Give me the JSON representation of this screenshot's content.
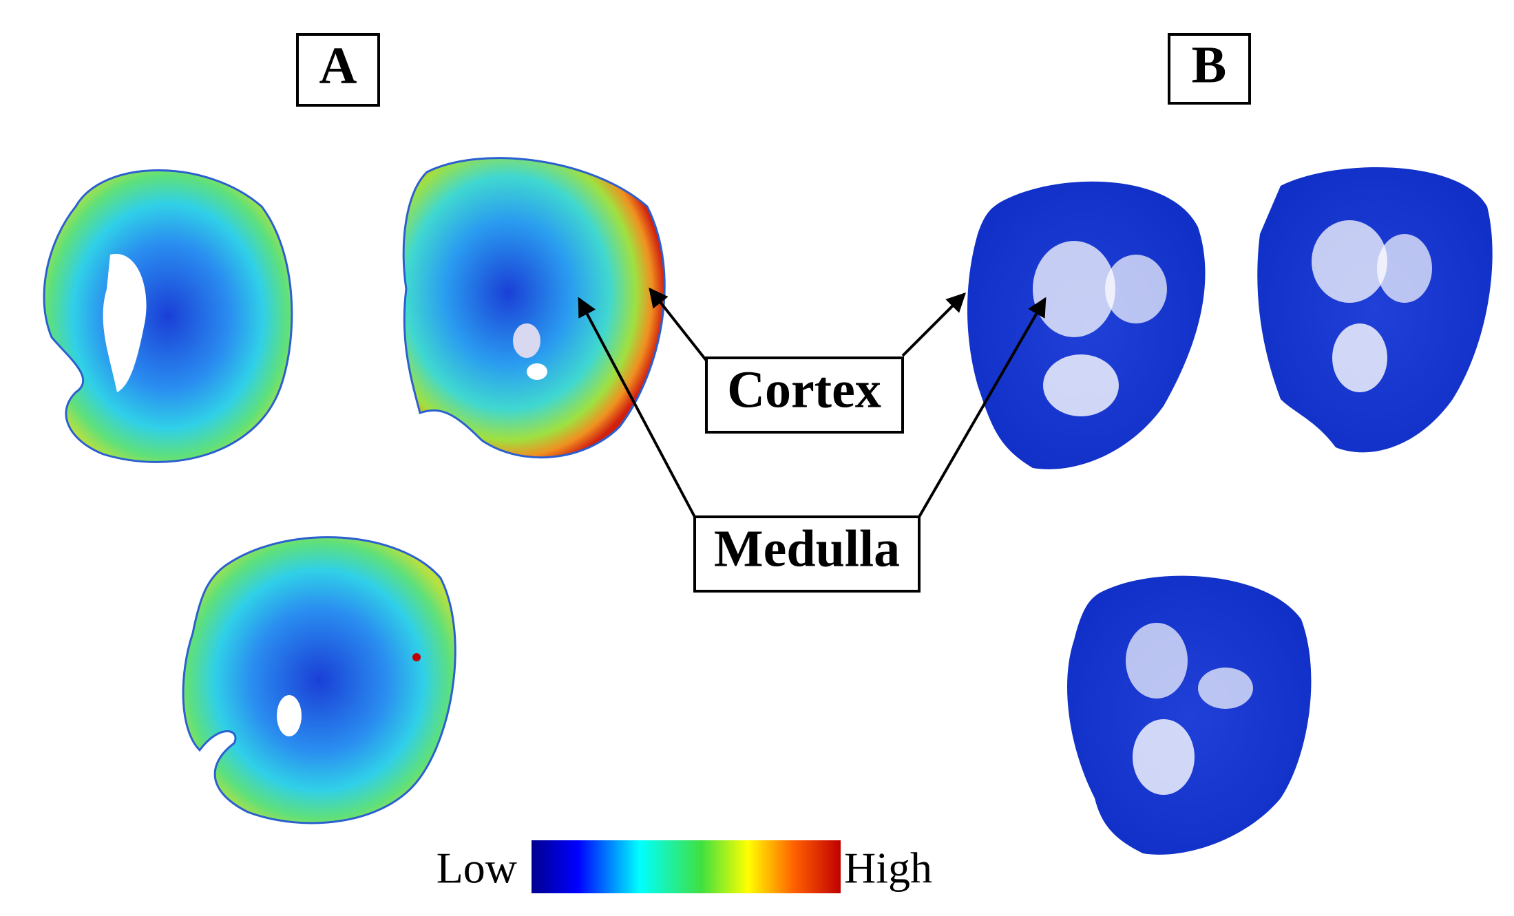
{
  "panels": [
    {
      "label": "A"
    },
    {
      "label": "B"
    }
  ],
  "annotations": [
    {
      "label": "Cortex"
    },
    {
      "label": "Medulla"
    }
  ],
  "colorbar": {
    "low": "Low",
    "high": "High"
  }
}
